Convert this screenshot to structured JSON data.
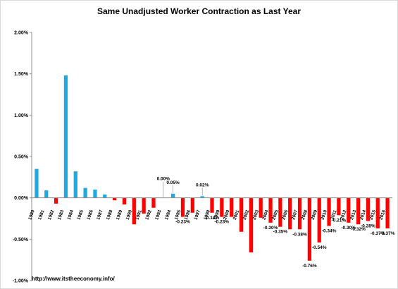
{
  "chart_data": {
    "type": "bar",
    "title": "Same Unadjusted Worker Contraction as Last Year",
    "source_text": "http://www.itstheeconomy.info/",
    "ylim": [
      -1.0,
      2.0
    ],
    "yticks": [
      2.0,
      1.5,
      1.0,
      0.5,
      0.0,
      -0.5,
      -1.0
    ],
    "ytick_labels": [
      "2.00%",
      "1.50%",
      "1.00%",
      "0.50%",
      "0.00%",
      "-0.50%",
      "-1.00%"
    ],
    "grid": false,
    "colors": {
      "positive": "#1ea9e1",
      "negative": "#ff0000"
    },
    "categories": [
      "1980",
      "1981",
      "1982",
      "1983",
      "1984",
      "1985",
      "1986",
      "1987",
      "1988",
      "1989",
      "1990",
      "1991",
      "1992",
      "1993",
      "1994",
      "1995",
      "1996",
      "1997",
      "1998",
      "1999",
      "2000",
      "2001",
      "2002",
      "2003",
      "2004",
      "2005",
      "2006",
      "2007",
      "2008",
      "2009",
      "2010",
      "2011",
      "2012",
      "2013",
      "2014",
      "2015",
      "2016"
    ],
    "values": [
      0.35,
      0.09,
      -0.07,
      1.48,
      0.32,
      0.12,
      0.1,
      0.04,
      -0.03,
      -0.08,
      -0.32,
      -0.19,
      -0.12,
      0.0,
      0.05,
      -0.23,
      -0.18,
      0.02,
      -0.18,
      -0.23,
      -0.23,
      -0.41,
      -0.66,
      -0.24,
      -0.3,
      -0.35,
      -0.38,
      -0.38,
      -0.76,
      -0.54,
      -0.34,
      -0.21,
      -0.3,
      -0.32,
      -0.28,
      -0.37,
      -0.37
    ],
    "data_labels": [
      {
        "index": 13,
        "text": "0.00%"
      },
      {
        "index": 14,
        "text": "0.05%"
      },
      {
        "index": 15,
        "text": "-0.23%"
      },
      {
        "index": 17,
        "text": "0.02%"
      },
      {
        "index": 18,
        "text": "-0.18%"
      },
      {
        "index": 19,
        "text": "-0.23%"
      },
      {
        "index": 24,
        "text": "-0.30%"
      },
      {
        "index": 25,
        "text": "-0.35%"
      },
      {
        "index": 27,
        "text": "-0.38%"
      },
      {
        "index": 28,
        "text": "-0.76%"
      },
      {
        "index": 29,
        "text": "-0.54%"
      },
      {
        "index": 30,
        "text": "-0.34%"
      },
      {
        "index": 31,
        "text": "-0.21%"
      },
      {
        "index": 32,
        "text": "-0.30%"
      },
      {
        "index": 33,
        "text": "-0.32%"
      },
      {
        "index": 34,
        "text": "-0.28%"
      },
      {
        "index": 35,
        "text": "-0.37%"
      },
      {
        "index": 36,
        "text": "-0.37%"
      }
    ]
  }
}
